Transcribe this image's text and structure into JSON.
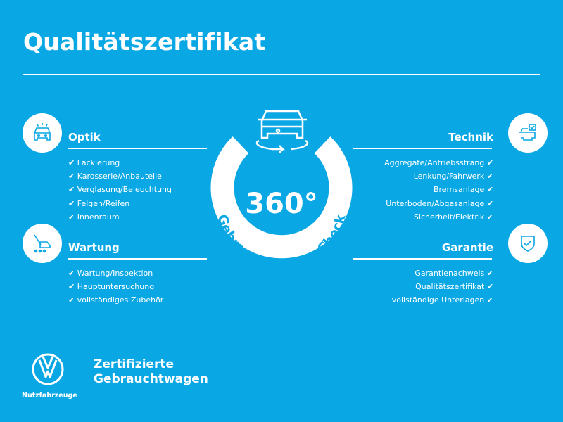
{
  "title": "Qualitätszertifikat",
  "badge": {
    "number": "360°",
    "arc_text": "Gebrauchtwagen-Check"
  },
  "sections": {
    "optik": {
      "heading": "Optik",
      "icon": "car-front-lights-icon",
      "items": [
        "Lackierung",
        "Karosserie/Anbauteile",
        "Verglasung/Beleuchtung",
        "Felgen/Reifen",
        "Innenraum"
      ]
    },
    "wartung": {
      "heading": "Wartung",
      "icon": "maintenance-tools-icon",
      "items": [
        "Wartung/Inspektion",
        "Hauptuntersuchung",
        "vollständiges Zubehör"
      ]
    },
    "technik": {
      "heading": "Technik",
      "icon": "car-checklist-icon",
      "items": [
        "Aggregate/Antriebsstrang",
        "Lenkung/Fahrwerk",
        "Bremsanlage",
        "Unterboden/Abgasanlage",
        "Sicherheit/Elektrik"
      ]
    },
    "garantie": {
      "heading": "Garantie",
      "icon": "shield-check-icon",
      "items": [
        "Garantienachweis",
        "Qualitätszertifikat",
        "vollständige Unterlagen"
      ]
    }
  },
  "check_mark": "✔",
  "footer": {
    "brand_line1": "Zertifizierte",
    "brand_line2": "Gebrauchtwagen",
    "logo_sub": "Nutzfahrzeuge"
  },
  "colors": {
    "background": "#0aa7e5",
    "foreground": "#ffffff"
  }
}
